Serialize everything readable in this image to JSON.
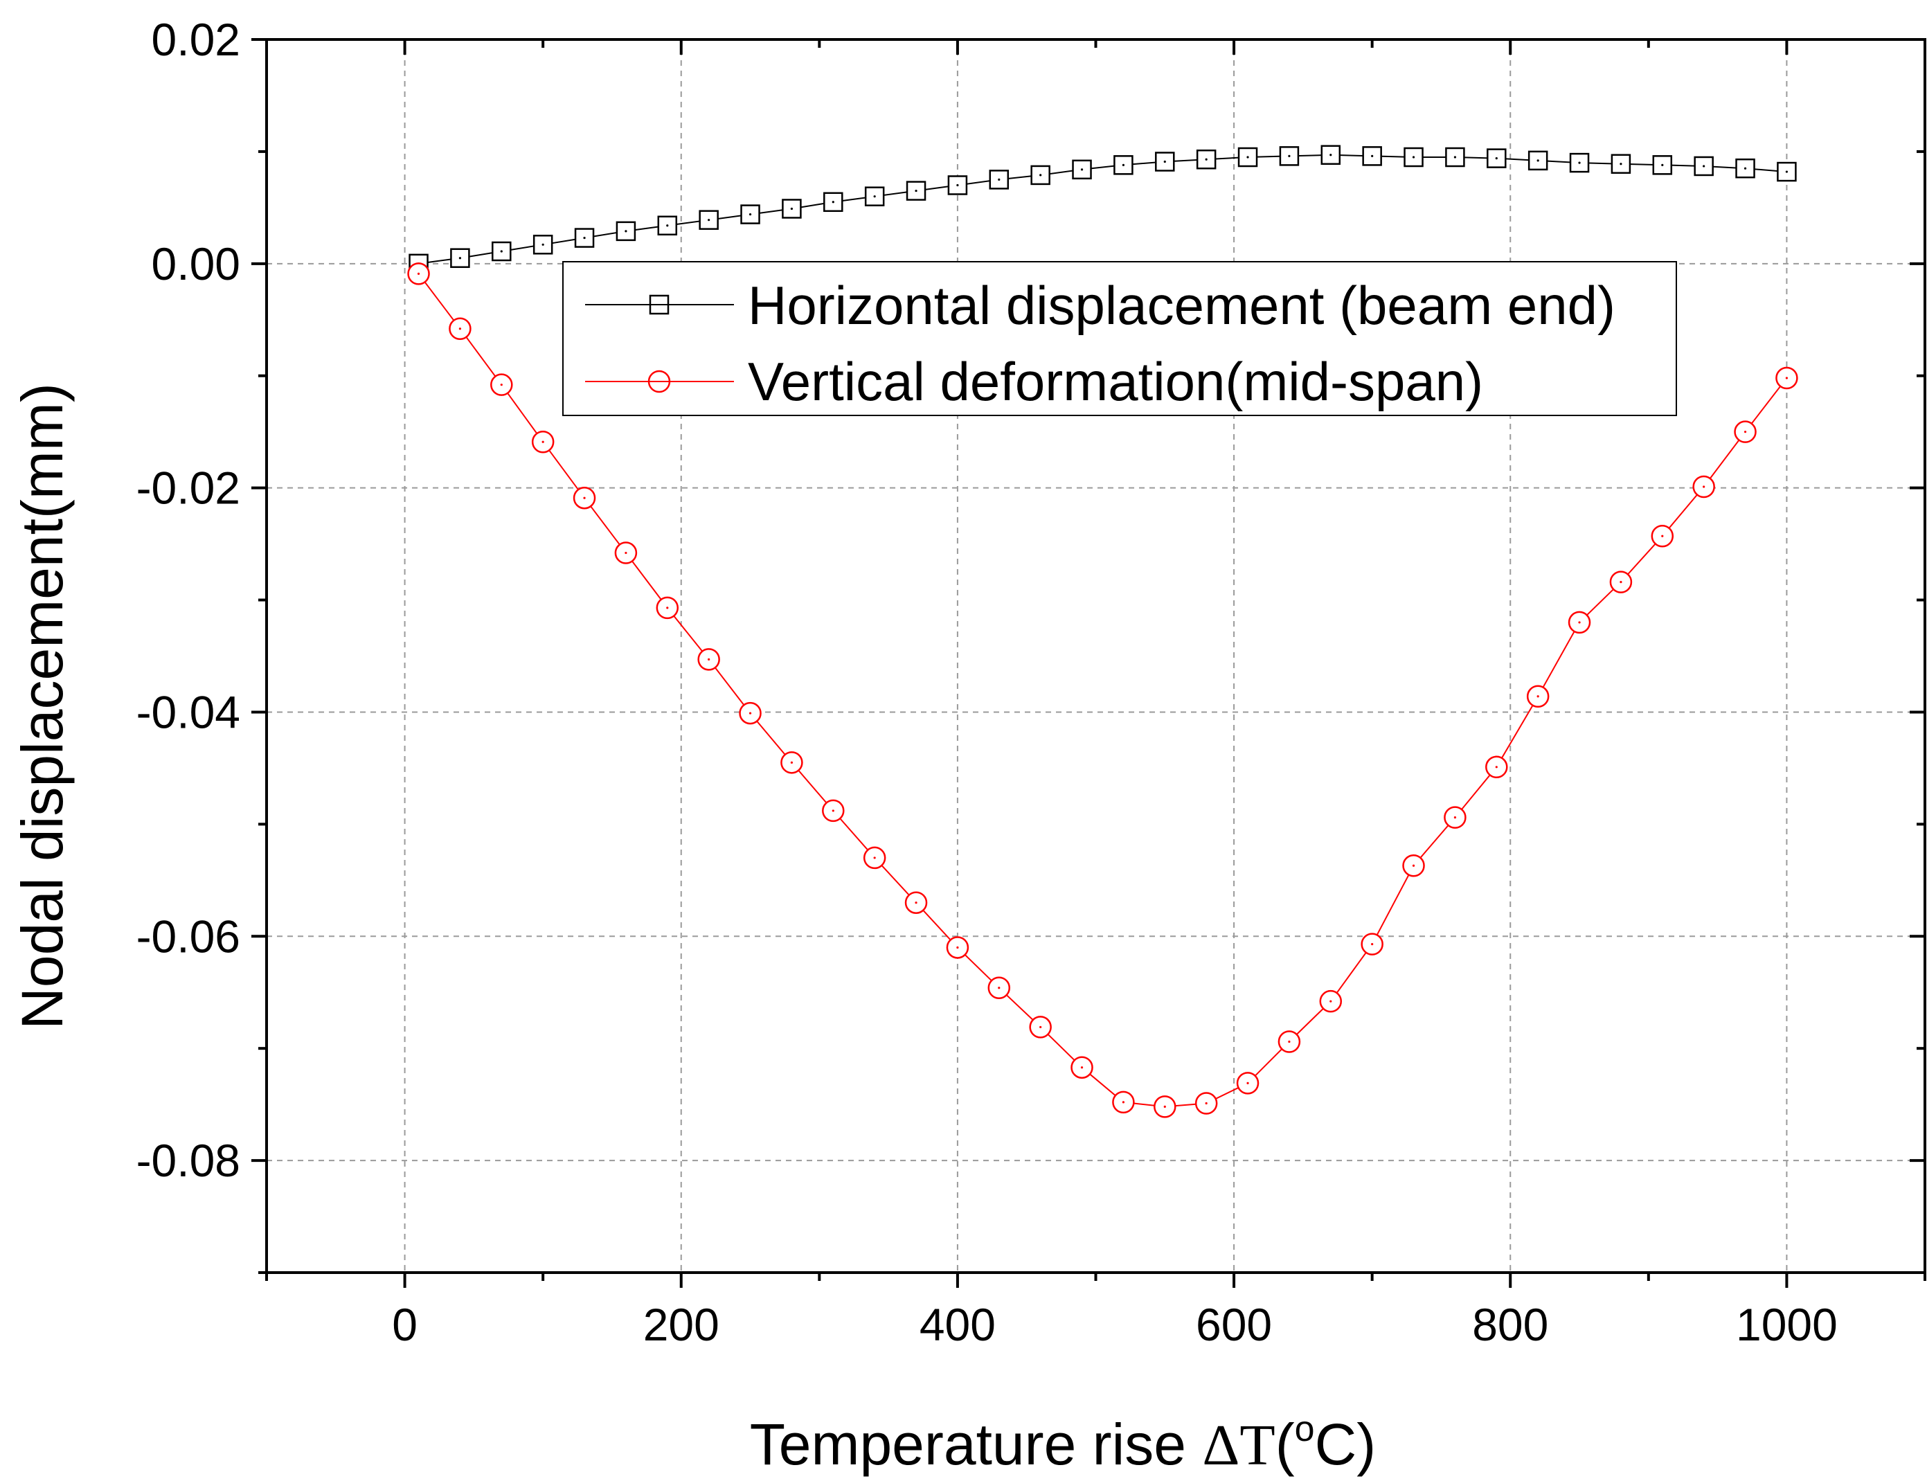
{
  "chart_data": {
    "type": "line",
    "xlabel": "Temperature rise ",
    "xlabel_symbol": "ΔT",
    "xlabel_unit_open": "(",
    "xlabel_degree": "o",
    "xlabel_unit_close": "C)",
    "ylabel": "Nodal displacement(mm)",
    "xlim": [
      -100,
      1100
    ],
    "ylim": [
      -0.09,
      0.02
    ],
    "x_ticks": [
      0,
      200,
      400,
      600,
      800,
      1000
    ],
    "x_tick_labels": [
      "0",
      "200",
      "400",
      "600",
      "800",
      "1000"
    ],
    "y_ticks": [
      0.02,
      0.0,
      -0.02,
      -0.04,
      -0.06,
      -0.08
    ],
    "y_tick_labels": [
      "0.02",
      "0.00",
      "-0.02",
      "-0.04",
      "-0.06",
      "-0.08"
    ],
    "grid": true,
    "legend_position": "top-center",
    "x": [
      10,
      40,
      70,
      100,
      130,
      160,
      190,
      220,
      250,
      280,
      310,
      340,
      370,
      400,
      430,
      460,
      490,
      520,
      550,
      580,
      610,
      640,
      670,
      700,
      730,
      760,
      790,
      820,
      850,
      880,
      910,
      940,
      970,
      1000
    ],
    "series": [
      {
        "name": "Horizontal displacement (beam end)",
        "color": "#000000",
        "marker": "square",
        "values": [
          0.0,
          0.0005,
          0.0011,
          0.0017,
          0.0023,
          0.0029,
          0.0034,
          0.0039,
          0.0044,
          0.0049,
          0.0055,
          0.006,
          0.0065,
          0.007,
          0.0075,
          0.0079,
          0.0084,
          0.0088,
          0.0091,
          0.0093,
          0.0095,
          0.0096,
          0.0097,
          0.0096,
          0.0095,
          0.0095,
          0.0094,
          0.0092,
          0.009,
          0.0089,
          0.0088,
          0.0087,
          0.0085,
          0.0082
        ]
      },
      {
        "name": "Vertical deformation(mid-span)",
        "color": "#ff0000",
        "marker": "circle",
        "values": [
          -0.0009,
          -0.0058,
          -0.0108,
          -0.0159,
          -0.0209,
          -0.0258,
          -0.0307,
          -0.0353,
          -0.0401,
          -0.0445,
          -0.0488,
          -0.053,
          -0.057,
          -0.061,
          -0.0646,
          -0.0681,
          -0.0717,
          -0.0748,
          -0.0752,
          -0.0749,
          -0.0731,
          -0.0694,
          -0.0658,
          -0.0607,
          -0.0537,
          -0.0494,
          -0.0449,
          -0.0386,
          -0.032,
          -0.0284,
          -0.0243,
          -0.0199,
          -0.015,
          -0.0102
        ]
      }
    ]
  }
}
